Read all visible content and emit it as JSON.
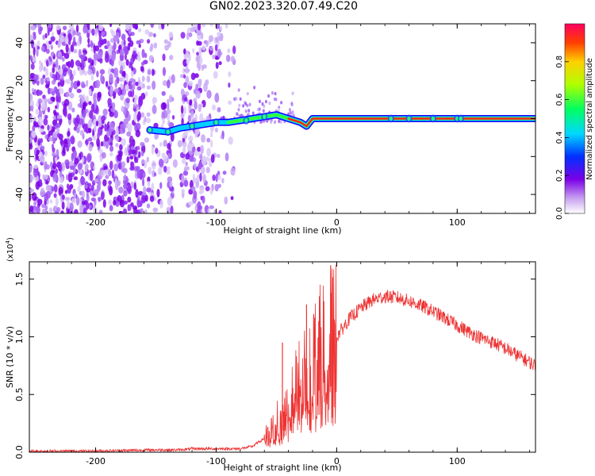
{
  "title": "GN02.2023.320.07.49.C20",
  "colorbar": {
    "label": "Normalized spectral amplitude",
    "ticks": [
      "0.0",
      "0.2",
      "0.4",
      "0.6",
      "0.8"
    ],
    "range": [
      0,
      1
    ]
  },
  "chart_data": [
    {
      "type": "heatmap",
      "xlabel": "Height of straight line (km)",
      "ylabel": "Frequency (Hz)",
      "xlim": [
        -255,
        165
      ],
      "ylim": [
        -50,
        50
      ],
      "x_ticks": [
        "-200",
        "-100",
        "0",
        "100"
      ],
      "y_ticks": [
        "-40",
        "-20",
        "0",
        "20",
        "40"
      ],
      "ridge": {
        "description_points": [
          [
            -155,
            -6
          ],
          [
            -140,
            -7
          ],
          [
            -130,
            -5
          ],
          [
            -120,
            -4
          ],
          [
            -110,
            -3
          ],
          [
            -100,
            -2
          ],
          [
            -90,
            -2
          ],
          [
            -80,
            -1
          ],
          [
            -70,
            0
          ],
          [
            -60,
            1
          ],
          [
            -50,
            2
          ],
          [
            -40,
            0
          ],
          [
            -30,
            -2
          ],
          [
            -25,
            -4
          ],
          [
            -20,
            0
          ],
          [
            0,
            0
          ],
          [
            50,
            0
          ],
          [
            100,
            0
          ],
          [
            165,
            0
          ]
        ]
      },
      "grid": false
    },
    {
      "type": "line",
      "xlabel": "Height of straight line (km)",
      "ylabel": "SNR (10 * v/v)",
      "y_multiplier": "(x10^4)",
      "xlim": [
        -255,
        165
      ],
      "ylim": [
        0,
        1.65
      ],
      "x_ticks": [
        "-200",
        "-100",
        "0",
        "100"
      ],
      "y_ticks": [
        "0.0",
        "0.5",
        "1.0",
        "1.5"
      ],
      "series": [
        {
          "color": "#ee3333",
          "x": [
            -255,
            -200,
            -150,
            -130,
            -120,
            -100,
            -80,
            -70,
            -60,
            -55,
            -50,
            -45,
            -40,
            -35,
            -30,
            -25,
            -20,
            -15,
            -10,
            -5,
            0,
            10,
            20,
            30,
            40,
            50,
            60,
            70,
            80,
            90,
            100,
            110,
            120,
            130,
            140,
            150,
            160,
            165
          ],
          "y": [
            0.01,
            0.01,
            0.02,
            0.02,
            0.03,
            0.03,
            0.03,
            0.05,
            0.12,
            0.18,
            0.25,
            0.32,
            0.42,
            0.5,
            0.6,
            0.68,
            0.75,
            0.82,
            0.9,
            0.95,
            1.0,
            1.15,
            1.25,
            1.32,
            1.35,
            1.34,
            1.31,
            1.27,
            1.22,
            1.16,
            1.1,
            1.04,
            0.99,
            0.95,
            0.9,
            0.84,
            0.78,
            0.75
          ]
        }
      ],
      "spikes": [
        {
          "x": -45,
          "y": 0.95
        },
        {
          "x": -25,
          "y": 1.28
        },
        {
          "x": -5,
          "y": 1.62
        }
      ],
      "grid": false
    }
  ]
}
